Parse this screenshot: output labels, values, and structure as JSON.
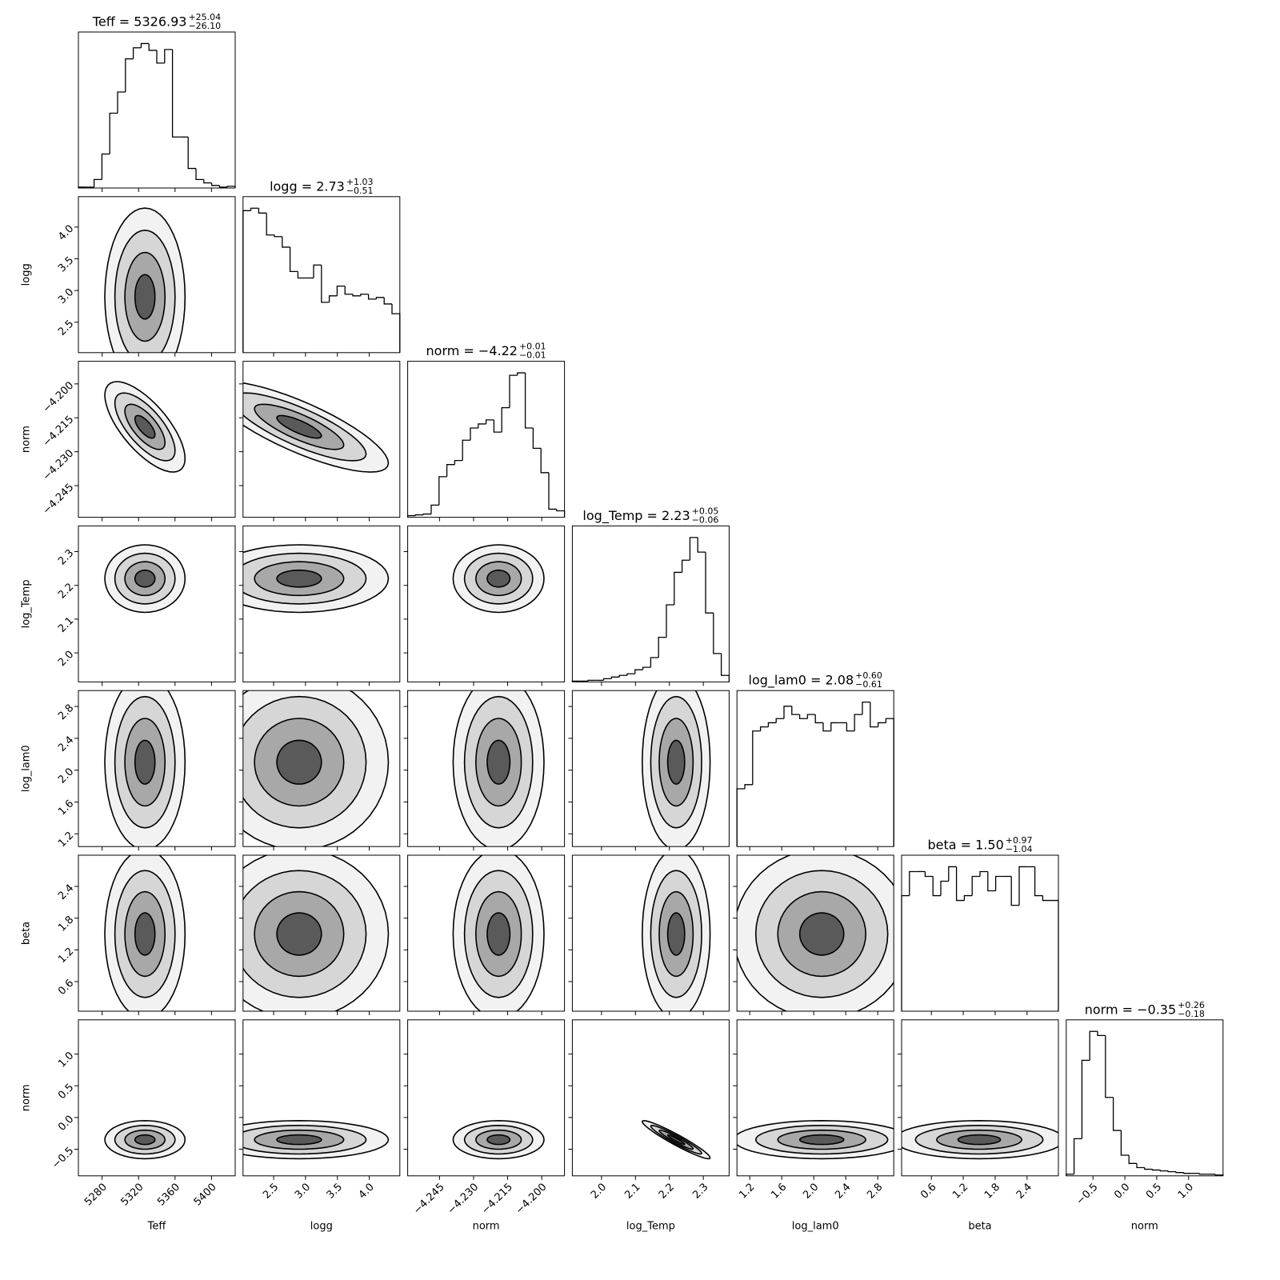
{
  "chart_data": {
    "type": "corner",
    "color": "#000000",
    "params": [
      {
        "name": "Teff",
        "title": "Teff = 5326.93",
        "upper": "+25.04",
        "lower": "−26.10",
        "lim": [
          5254,
          5426
        ],
        "ticks": [
          5280,
          5320,
          5360,
          5400
        ],
        "bins": [
          5254,
          5262.6,
          5271.2,
          5279.8,
          5288.4,
          5297,
          5305.6,
          5314.2,
          5322.8,
          5331.4,
          5340,
          5348.6,
          5357.2,
          5365.8,
          5374.4,
          5383,
          5391.6,
          5400.2,
          5408.8,
          5417.4,
          5426
        ],
        "counts": [
          1,
          1,
          10,
          40,
          88,
          113,
          152,
          165,
          170,
          162,
          147,
          163,
          60,
          60,
          23,
          10,
          6,
          3,
          1,
          2
        ],
        "center": 5327,
        "spread": 22
      },
      {
        "name": "logg",
        "title": "logg = 2.73",
        "upper": "+1.03",
        "lower": "−0.51",
        "lim": [
          2.02,
          4.48
        ],
        "ticks": [
          2.5,
          {
            "value": 3,
            "label": "3.0"
          },
          3.5,
          {
            "value": 4,
            "label": "4.0"
          }
        ],
        "bins": [
          2.02,
          2.143,
          2.266,
          2.389,
          2.512,
          2.635,
          2.758,
          2.881,
          3.004,
          3.127,
          3.25,
          3.373,
          3.496,
          3.619,
          3.742,
          3.865,
          3.988,
          4.111,
          4.234,
          4.357,
          4.48
        ],
        "counts": [
          175,
          178,
          172,
          145,
          143,
          130,
          100,
          92,
          92,
          108,
          62,
          70,
          82,
          72,
          70,
          72,
          66,
          68,
          60,
          48
        ],
        "center": 2.9,
        "spread": 0.7
      },
      {
        "name": "norm",
        "title": "norm = −4.22",
        "upper": "+0.01",
        "lower": "−0.01",
        "lim": [
          -4.259,
          -4.19
        ],
        "ticks": [
          {
            "value": -4.245,
            "label": "−4.245"
          },
          {
            "value": -4.23,
            "label": "−4.230"
          },
          {
            "value": -4.215,
            "label": "−4.215"
          },
          {
            "value": -4.2,
            "label": "−4.200"
          }
        ],
        "bins": [
          -4.259,
          -4.25555,
          -4.2521,
          -4.24865,
          -4.2452,
          -4.24175,
          -4.2383,
          -4.23485,
          -4.2314,
          -4.22795,
          -4.2245,
          -4.22105,
          -4.2176,
          -4.21415,
          -4.2107,
          -4.20725,
          -4.2038,
          -4.20035,
          -4.1969,
          -4.19345,
          -4.19
        ],
        "counts": [
          2,
          3,
          4,
          15,
          50,
          65,
          70,
          95,
          110,
          115,
          120,
          105,
          135,
          175,
          178,
          110,
          85,
          55,
          10,
          8
        ],
        "center": -4.219,
        "spread": 0.01
      },
      {
        "name": "log_Temp",
        "title": "log_Temp = 2.23",
        "upper": "+0.05",
        "lower": "−0.06",
        "lim": [
          1.914,
          2.376
        ],
        "ticks": [
          {
            "value": 2,
            "label": "2.0"
          },
          2.1,
          2.2,
          2.3
        ],
        "bins": [
          1.914,
          1.9371,
          1.9602,
          1.9833,
          2.0064,
          2.0295,
          2.0526,
          2.0757,
          2.0988,
          2.1219,
          2.145,
          2.1681,
          2.1912,
          2.2143,
          2.2374,
          2.2605,
          2.2836,
          2.3067,
          2.3298,
          2.3529,
          2.376
        ],
        "counts": [
          1,
          1,
          2,
          2,
          4,
          6,
          8,
          10,
          15,
          18,
          30,
          55,
          95,
          135,
          150,
          178,
          160,
          85,
          35,
          8
        ],
        "center": 2.22,
        "spread": 0.05
      },
      {
        "name": "log_lam0",
        "title": "log_lam0 = 2.08",
        "upper": "+0.60",
        "lower": "−0.61",
        "lim": [
          1.04,
          3.0
        ],
        "ticks": [
          1.2,
          1.6,
          {
            "value": 2,
            "label": "2.0"
          },
          2.4,
          2.8
        ],
        "bins": [
          1.04,
          1.138,
          1.236,
          1.334,
          1.432,
          1.53,
          1.628,
          1.726,
          1.824,
          1.922,
          2.02,
          2.118,
          2.216,
          2.314,
          2.412,
          2.51,
          2.608,
          2.706,
          2.804,
          2.902,
          3.0
        ],
        "counts": [
          70,
          75,
          140,
          145,
          150,
          155,
          170,
          160,
          155,
          160,
          150,
          140,
          150,
          150,
          140,
          160,
          175,
          145,
          150,
          155
        ],
        "center": 2.1,
        "spread": 0.55
      },
      {
        "name": "beta",
        "title": "beta = 1.50",
        "upper": "+0.97",
        "lower": "−1.04",
        "lim": [
          0.04,
          2.99
        ],
        "ticks": [
          0.6,
          1.2,
          1.8,
          2.4
        ],
        "bins": [
          0.04,
          0.1875,
          0.335,
          0.4825,
          0.63,
          0.7775,
          0.925,
          1.0725,
          1.22,
          1.3675,
          1.515,
          1.6625,
          1.81,
          1.9575,
          2.105,
          2.2525,
          2.4,
          2.5475,
          2.695,
          2.8425,
          2.99
        ],
        "counts": [
          120,
          145,
          145,
          140,
          120,
          135,
          150,
          115,
          120,
          140,
          145,
          125,
          140,
          140,
          110,
          150,
          150,
          120,
          115,
          115
        ],
        "center": 1.5,
        "spread": 0.8
      },
      {
        "name": "norm",
        "title": "norm = −0.35",
        "upper": "+0.26",
        "lower": "−0.18",
        "lim": [
          -0.92,
          1.54
        ],
        "ticks": [
          {
            "value": -0.5,
            "label": "−0.5"
          },
          {
            "value": 0,
            "label": "0.0"
          },
          0.5,
          {
            "value": 1,
            "label": "1.0"
          }
        ],
        "bins": [
          -0.92,
          -0.797,
          -0.674,
          -0.551,
          -0.428,
          -0.305,
          -0.182,
          -0.059,
          0.064,
          0.187,
          0.31,
          0.433,
          0.556,
          0.679,
          0.802,
          0.925,
          1.048,
          1.171,
          1.294,
          1.417,
          1.54
        ],
        "counts": [
          2,
          45,
          140,
          175,
          170,
          95,
          55,
          25,
          15,
          10,
          8,
          7,
          6,
          5,
          4,
          3,
          3,
          2,
          2,
          1
        ],
        "center": -0.35,
        "spread": 0.15
      }
    ],
    "corr": [
      [],
      [
        0
      ],
      [
        -0.7,
        -0.8
      ],
      [
        0,
        0,
        0
      ],
      [
        0,
        0,
        0,
        0
      ],
      [
        0,
        0,
        0,
        0,
        0
      ],
      [
        0,
        0,
        0,
        -0.95,
        0,
        0
      ]
    ]
  }
}
